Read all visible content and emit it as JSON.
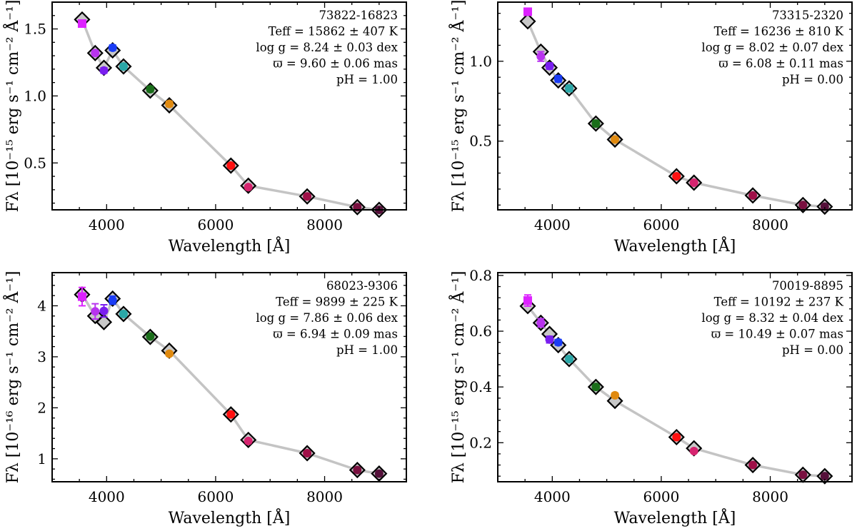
{
  "chart_data": [
    {
      "type": "scatter",
      "panel": "top-left",
      "title": "73822-16823",
      "annotations": [
        "73822-16823",
        "Teff = 15862 ± 407 K",
        "log g = 8.24 ± 0.03 dex",
        "ϖ = 9.60 ± 0.06 mas",
        "pH = 1.00"
      ],
      "xlabel": "Wavelength [Å]",
      "ylabel": "Fλ [10⁻¹⁵ erg s⁻¹ cm⁻² Å⁻¹]",
      "xlim": [
        3000,
        9500
      ],
      "ylim": [
        0.15,
        1.7
      ],
      "xticks": [
        4000,
        6000,
        8000
      ],
      "yticks": [
        0.5,
        1.0,
        1.5
      ],
      "ytick_labels": [
        "0.5",
        "1.0",
        "1.5"
      ],
      "model_curve": {
        "x": [
          3550,
          3790,
          3950,
          4110,
          4310,
          4800,
          5150,
          6280,
          6600,
          7680,
          8600,
          9000
        ],
        "y": [
          1.57,
          1.32,
          1.21,
          1.34,
          1.22,
          1.04,
          0.93,
          0.48,
          0.33,
          0.25,
          0.17,
          0.15
        ]
      },
      "observed": [
        {
          "x": 3550,
          "y": 1.54,
          "err": 0.02,
          "marker": "square",
          "color": "#dd22ff"
        },
        {
          "x": 3790,
          "y": 1.32,
          "err": 0.02,
          "marker": "circle",
          "color": "#b833ee"
        },
        {
          "x": 3950,
          "y": 1.19,
          "err": 0.02,
          "marker": "circle",
          "color": "#7a1ef0"
        },
        {
          "x": 4110,
          "y": 1.36,
          "err": 0.02,
          "marker": "circle",
          "color": "#1a3cf5"
        },
        {
          "x": 4310,
          "y": 1.22,
          "err": 0.02,
          "marker": "circle",
          "color": "#2aa8a8"
        },
        {
          "x": 4800,
          "y": 1.05,
          "err": 0.02,
          "marker": "circle",
          "color": "#1a6e1a"
        },
        {
          "x": 5150,
          "y": 0.94,
          "err": 0.02,
          "marker": "circle",
          "color": "#e08a10"
        },
        {
          "x": 6280,
          "y": 0.48,
          "err": 0.01,
          "marker": "circle",
          "color": "#ff1010"
        },
        {
          "x": 6600,
          "y": 0.32,
          "err": 0.01,
          "marker": "circle",
          "color": "#d6246f"
        },
        {
          "x": 7680,
          "y": 0.25,
          "err": 0.01,
          "marker": "circle",
          "color": "#a01048"
        },
        {
          "x": 8600,
          "y": 0.17,
          "err": 0.01,
          "marker": "circle",
          "color": "#7a1040"
        },
        {
          "x": 9000,
          "y": 0.15,
          "err": 0.01,
          "marker": "circle",
          "color": "#55103a"
        }
      ]
    },
    {
      "type": "scatter",
      "panel": "top-right",
      "title": "73315-2320",
      "annotations": [
        "73315-2320",
        "Teff = 16236 ± 810 K",
        "log g = 8.02 ± 0.07 dex",
        "ϖ = 6.08 ± 0.11 mas",
        "pH = 0.00"
      ],
      "xlabel": "Wavelength [Å]",
      "ylabel": "Fλ [10⁻¹⁵ erg s⁻¹ cm⁻² Å⁻¹]",
      "xlim": [
        3000,
        9500
      ],
      "ylim": [
        0.07,
        1.37
      ],
      "xticks": [
        4000,
        6000,
        8000
      ],
      "yticks": [
        0.5,
        1.0
      ],
      "ytick_labels": [
        "0.5",
        "1.0"
      ],
      "model_curve": {
        "x": [
          3550,
          3790,
          3950,
          4110,
          4310,
          4800,
          5150,
          6280,
          6600,
          7680,
          8600,
          9000
        ],
        "y": [
          1.25,
          1.06,
          0.96,
          0.88,
          0.83,
          0.61,
          0.51,
          0.28,
          0.24,
          0.16,
          0.1,
          0.09
        ]
      },
      "observed": [
        {
          "x": 3550,
          "y": 1.31,
          "err": 0.02,
          "marker": "square",
          "color": "#dd22ff"
        },
        {
          "x": 3790,
          "y": 1.03,
          "err": 0.03,
          "marker": "circle",
          "color": "#b833ee"
        },
        {
          "x": 3950,
          "y": 0.97,
          "err": 0.02,
          "marker": "circle",
          "color": "#7a1ef0"
        },
        {
          "x": 4110,
          "y": 0.89,
          "err": 0.02,
          "marker": "circle",
          "color": "#1a3cf5"
        },
        {
          "x": 4310,
          "y": 0.83,
          "err": 0.02,
          "marker": "circle",
          "color": "#2aa8a8"
        },
        {
          "x": 4800,
          "y": 0.61,
          "err": 0.02,
          "marker": "circle",
          "color": "#1a6e1a"
        },
        {
          "x": 5150,
          "y": 0.51,
          "err": 0.01,
          "marker": "circle",
          "color": "#e08a10"
        },
        {
          "x": 6280,
          "y": 0.28,
          "err": 0.01,
          "marker": "circle",
          "color": "#ff1010"
        },
        {
          "x": 6600,
          "y": 0.24,
          "err": 0.01,
          "marker": "circle",
          "color": "#d6246f"
        },
        {
          "x": 7680,
          "y": 0.16,
          "err": 0.01,
          "marker": "circle",
          "color": "#a01048"
        },
        {
          "x": 8600,
          "y": 0.1,
          "err": 0.01,
          "marker": "circle",
          "color": "#7a1040"
        },
        {
          "x": 9000,
          "y": 0.09,
          "err": 0.01,
          "marker": "circle",
          "color": "#55103a"
        }
      ]
    },
    {
      "type": "scatter",
      "panel": "bottom-left",
      "title": "68023-9306",
      "annotations": [
        "68023-9306",
        "Teff = 9899 ± 225 K",
        "log g = 7.86 ± 0.06 dex",
        "ϖ = 6.94 ± 0.09 mas",
        "pH = 1.00"
      ],
      "xlabel": "Wavelength [Å]",
      "ylabel": "Fλ [10⁻¹⁶ erg s⁻¹ cm⁻² Å⁻¹]",
      "xlim": [
        3000,
        9500
      ],
      "ylim": [
        0.55,
        4.65
      ],
      "xticks": [
        4000,
        6000,
        8000
      ],
      "yticks": [
        1,
        2,
        3,
        4
      ],
      "ytick_labels": [
        "1",
        "2",
        "3",
        "4"
      ],
      "model_curve": {
        "x": [
          3550,
          3790,
          3950,
          4110,
          4310,
          4800,
          5150,
          6280,
          6600,
          7680,
          8600,
          9000
        ],
        "y": [
          4.22,
          3.8,
          3.68,
          4.14,
          3.84,
          3.39,
          3.12,
          1.87,
          1.37,
          1.11,
          0.78,
          0.71
        ]
      },
      "observed": [
        {
          "x": 3550,
          "y": 4.18,
          "err": 0.18,
          "marker": "square",
          "color": "#dd22ff"
        },
        {
          "x": 3790,
          "y": 3.89,
          "err": 0.15,
          "marker": "circle",
          "color": "#b833ee"
        },
        {
          "x": 3950,
          "y": 3.9,
          "err": 0.12,
          "marker": "circle",
          "color": "#7a1ef0"
        },
        {
          "x": 4110,
          "y": 4.11,
          "err": 0.08,
          "marker": "circle",
          "color": "#1a3cf5"
        },
        {
          "x": 4310,
          "y": 3.84,
          "err": 0.05,
          "marker": "circle",
          "color": "#2aa8a8"
        },
        {
          "x": 4800,
          "y": 3.4,
          "err": 0.04,
          "marker": "circle",
          "color": "#1a6e1a"
        },
        {
          "x": 5150,
          "y": 3.06,
          "err": 0.04,
          "marker": "circle",
          "color": "#e08a10"
        },
        {
          "x": 6280,
          "y": 1.87,
          "err": 0.03,
          "marker": "circle",
          "color": "#ff1010"
        },
        {
          "x": 6600,
          "y": 1.35,
          "err": 0.03,
          "marker": "circle",
          "color": "#d6246f"
        },
        {
          "x": 7680,
          "y": 1.11,
          "err": 0.03,
          "marker": "circle",
          "color": "#a01048"
        },
        {
          "x": 8600,
          "y": 0.78,
          "err": 0.03,
          "marker": "circle",
          "color": "#7a1040"
        },
        {
          "x": 9000,
          "y": 0.71,
          "err": 0.03,
          "marker": "circle",
          "color": "#55103a"
        }
      ]
    },
    {
      "type": "scatter",
      "panel": "bottom-right",
      "title": "70019-8895",
      "annotations": [
        "70019-8895",
        "Teff = 10192 ± 237 K",
        "log g = 8.32 ± 0.04 dex",
        "ϖ = 10.49 ± 0.07 mas",
        "pH = 0.00"
      ],
      "xlabel": "Wavelength [Å]",
      "ylabel": "Fλ [10⁻¹⁵ erg s⁻¹ cm⁻² Å⁻¹]",
      "xlim": [
        3000,
        9500
      ],
      "ylim": [
        0.06,
        0.81
      ],
      "xticks": [
        4000,
        6000,
        8000
      ],
      "yticks": [
        0.2,
        0.4,
        0.6,
        0.8
      ],
      "ytick_labels": [
        "0.2",
        "0.4",
        "0.6",
        "0.8"
      ],
      "model_curve": {
        "x": [
          3550,
          3790,
          3950,
          4110,
          4310,
          4800,
          5150,
          6280,
          6600,
          7680,
          8600,
          9000
        ],
        "y": [
          0.69,
          0.63,
          0.59,
          0.55,
          0.5,
          0.4,
          0.35,
          0.22,
          0.18,
          0.12,
          0.085,
          0.08
        ]
      },
      "observed": [
        {
          "x": 3550,
          "y": 0.71,
          "err": 0.02,
          "marker": "square",
          "color": "#dd22ff"
        },
        {
          "x": 3790,
          "y": 0.63,
          "err": 0.015,
          "marker": "circle",
          "color": "#b833ee"
        },
        {
          "x": 3950,
          "y": 0.57,
          "err": 0.012,
          "marker": "circle",
          "color": "#7a1ef0"
        },
        {
          "x": 4110,
          "y": 0.56,
          "err": 0.01,
          "marker": "circle",
          "color": "#1a3cf5"
        },
        {
          "x": 4310,
          "y": 0.5,
          "err": 0.01,
          "marker": "circle",
          "color": "#2aa8a8"
        },
        {
          "x": 4800,
          "y": 0.4,
          "err": 0.008,
          "marker": "circle",
          "color": "#1a6e1a"
        },
        {
          "x": 5150,
          "y": 0.37,
          "err": 0.008,
          "marker": "circle",
          "color": "#e08a10"
        },
        {
          "x": 6280,
          "y": 0.22,
          "err": 0.005,
          "marker": "circle",
          "color": "#ff1010"
        },
        {
          "x": 6600,
          "y": 0.17,
          "err": 0.005,
          "marker": "circle",
          "color": "#d6246f"
        },
        {
          "x": 7680,
          "y": 0.12,
          "err": 0.004,
          "marker": "circle",
          "color": "#a01048"
        },
        {
          "x": 8600,
          "y": 0.085,
          "err": 0.004,
          "marker": "circle",
          "color": "#7a1040"
        },
        {
          "x": 9000,
          "y": 0.08,
          "err": 0.004,
          "marker": "circle",
          "color": "#55103a"
        }
      ]
    }
  ]
}
